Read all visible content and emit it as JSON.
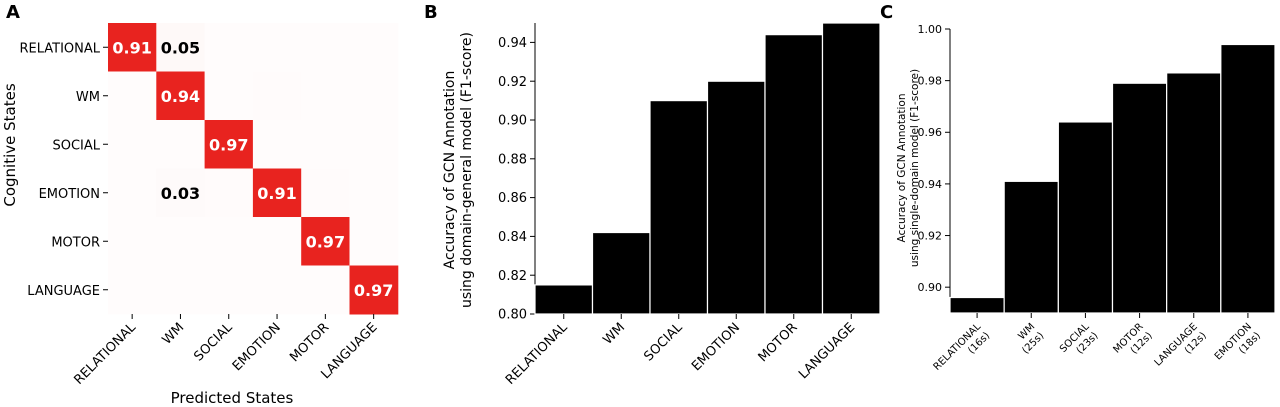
{
  "panels": {
    "a": {
      "letter": "A"
    },
    "b": {
      "letter": "B"
    },
    "c": {
      "letter": "C"
    }
  },
  "chart_data": [
    {
      "type": "heatmap",
      "panel": "A",
      "xlabel": "Predicted States",
      "ylabel": "Cognitive States",
      "rows": [
        "RELATIONAL",
        "WM",
        "SOCIAL",
        "EMOTION",
        "MOTOR",
        "LANGUAGE"
      ],
      "cols": [
        "RELATIONAL",
        "WM",
        "SOCIAL",
        "EMOTION",
        "MOTOR",
        "LANGUAGE"
      ],
      "values": [
        [
          0.91,
          0.05,
          0.01,
          0.01,
          0.01,
          0.01
        ],
        [
          0.01,
          0.94,
          0.01,
          0.02,
          0.01,
          0.01
        ],
        [
          0.01,
          0.01,
          0.97,
          0.01,
          0.0,
          0.0
        ],
        [
          0.01,
          0.03,
          0.02,
          0.91,
          0.02,
          0.01
        ],
        [
          0.0,
          0.01,
          0.01,
          0.01,
          0.97,
          0.0
        ],
        [
          0.0,
          0.01,
          0.01,
          0.0,
          0.01,
          0.97
        ]
      ],
      "labels": [
        [
          0.91,
          0.05,
          null,
          null,
          null,
          null
        ],
        [
          null,
          0.94,
          null,
          null,
          null,
          null
        ],
        [
          null,
          null,
          0.97,
          null,
          null,
          null
        ],
        [
          null,
          0.03,
          null,
          0.91,
          null,
          null
        ],
        [
          null,
          null,
          null,
          null,
          0.97,
          null
        ],
        [
          null,
          null,
          null,
          null,
          null,
          0.97
        ]
      ],
      "cell_color": "#e8231f"
    },
    {
      "type": "bar",
      "panel": "B",
      "categories": [
        "RELATIONAL",
        "WM",
        "SOCIAL",
        "EMOTION",
        "MOTOR",
        "LANGUAGE"
      ],
      "values": [
        0.815,
        0.842,
        0.91,
        0.92,
        0.944,
        0.95
      ],
      "ylabel_lines": [
        "Accuracy of GCN Annotation",
        "using domain-general model (F1-score)"
      ],
      "ylim": [
        0.8,
        0.95
      ],
      "yticks": [
        "0.80",
        "0.82",
        "0.84",
        "0.86",
        "0.88",
        "0.90",
        "0.92",
        "0.94"
      ],
      "bar_color": "#000000"
    },
    {
      "type": "bar",
      "panel": "C",
      "categories": [
        [
          "RELATIONAL",
          "(16s)"
        ],
        [
          "WM",
          "(25s)"
        ],
        [
          "SOCIAL",
          "(23s)"
        ],
        [
          "MOTOR",
          "(12s)"
        ],
        [
          "LANGUAGE",
          "(12s)"
        ],
        [
          "EMOTION",
          "(18s)"
        ]
      ],
      "values": [
        0.896,
        0.941,
        0.964,
        0.979,
        0.983,
        0.994
      ],
      "ylabel_lines": [
        "Accuracy of GCN Annotation",
        "using single-domain model (F1-score)"
      ],
      "ylim": [
        0.89,
        1.0
      ],
      "yticks": [
        "0.90",
        "0.92",
        "0.94",
        "0.96",
        "0.98",
        "1.00"
      ],
      "bar_color": "#000000"
    }
  ]
}
